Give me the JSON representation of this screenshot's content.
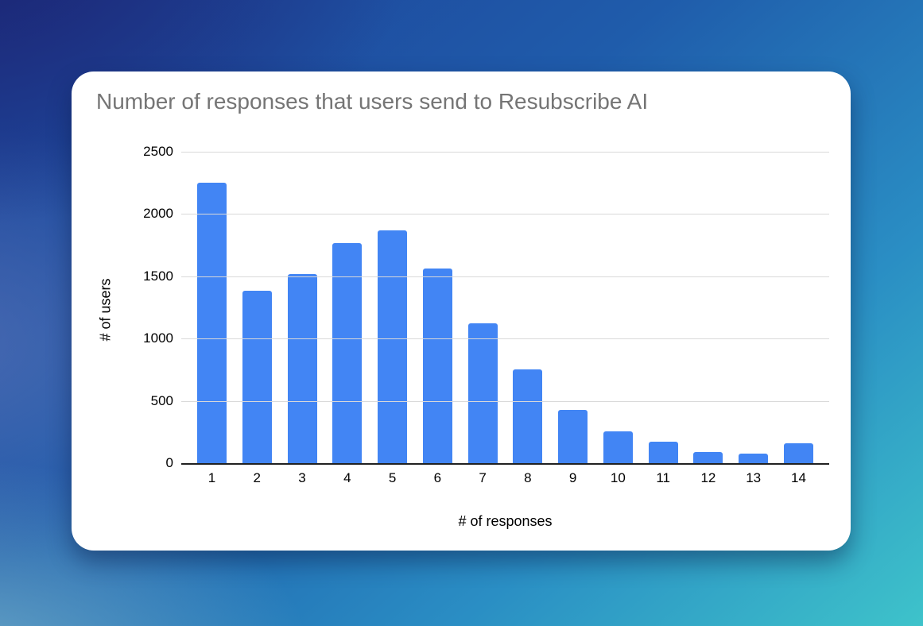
{
  "chart_data": {
    "type": "bar",
    "title": "Number of responses that users send to Resubscribe AI",
    "xlabel": "# of responses",
    "ylabel": "# of users",
    "categories": [
      "1",
      "2",
      "3",
      "4",
      "5",
      "6",
      "7",
      "8",
      "9",
      "10",
      "11",
      "12",
      "13",
      "14"
    ],
    "values": [
      2250,
      1385,
      1520,
      1765,
      1870,
      1565,
      1120,
      750,
      430,
      255,
      170,
      90,
      78,
      158
    ],
    "ylim": [
      0,
      2500
    ],
    "y_ticks": [
      "2500",
      "2000",
      "1500",
      "1000",
      "500",
      "0"
    ],
    "grid": true,
    "legend_position": "none",
    "bar_color": "#4285f4"
  },
  "colors": {
    "title_text": "#757575",
    "axis_text": "#000000",
    "bar": "#4285f4",
    "gridline": "#d9d9d9",
    "axis_line": "#212121",
    "card_background": "#ffffff",
    "background_top_left": "#1c2472",
    "background_top_right": "#1557a9",
    "background_mid_left": "#4a6fb5",
    "background_bottom_left": "#58a8c0",
    "background_bottom_right": "#3ec3ca"
  }
}
